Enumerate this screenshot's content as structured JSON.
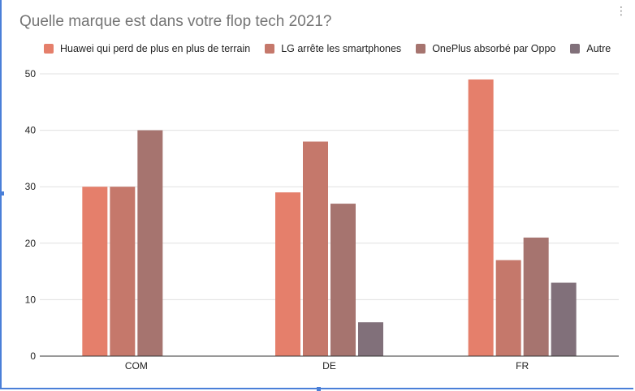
{
  "chart_data": {
    "type": "bar",
    "title": "Quelle marque est dans votre flop tech 2021?",
    "categories": [
      "COM",
      "DE",
      "FR"
    ],
    "series": [
      {
        "name": "Huawei qui perd de plus en plus de terrain",
        "color": "#e57f6b",
        "values": [
          30,
          29,
          49
        ]
      },
      {
        "name": "LG arrête les smartphones",
        "color": "#c5786b",
        "values": [
          30,
          38,
          17
        ]
      },
      {
        "name": "OnePlus absorbé par Oppo",
        "color": "#a6746f",
        "values": [
          40,
          27,
          21
        ]
      },
      {
        "name": "Autre",
        "color": "#81707a",
        "values": [
          null,
          6,
          13
        ]
      }
    ],
    "yticks": [
      0,
      10,
      20,
      30,
      40,
      50
    ],
    "ylim": [
      0,
      50
    ],
    "grid": true,
    "legend_position": "top"
  },
  "icons": {
    "menu": "more-vert-icon"
  }
}
